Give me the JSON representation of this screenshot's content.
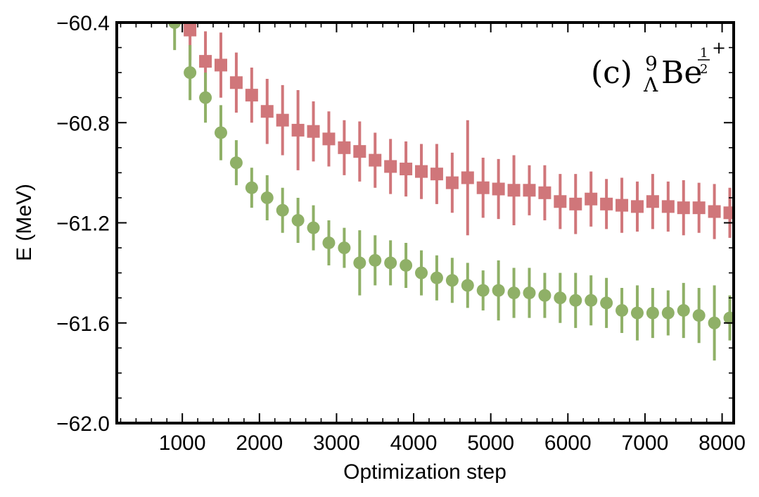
{
  "chart_data": {
    "type": "scatter",
    "title": "",
    "annotation": {
      "panel": "(c)",
      "mass_number": "9",
      "subscript": "Λ",
      "element": "Be",
      "spin_numerator": "1",
      "spin_denominator": "2",
      "parity": "+"
    },
    "xlabel": "Optimization step",
    "ylabel": "E (MeV)",
    "xlim": [
      150,
      8150
    ],
    "ylim": [
      -62.0,
      -60.4
    ],
    "xticks": [
      1000,
      2000,
      3000,
      4000,
      5000,
      6000,
      7000,
      8000
    ],
    "xtick_labels": [
      "1000",
      "2000",
      "3000",
      "4000",
      "5000",
      "6000",
      "7000",
      "8000"
    ],
    "yticks": [
      -62.0,
      -61.6,
      -61.2,
      -60.8,
      -60.4
    ],
    "ytick_labels": [
      "−62.0",
      "−61.6",
      "−61.2",
      "−60.8",
      "−60.4"
    ],
    "grid": false,
    "series": [
      {
        "name": "red-squares",
        "marker": "square",
        "color": "#d0767a",
        "x": [
          1100,
          1300,
          1500,
          1700,
          1900,
          2100,
          2300,
          2500,
          2700,
          2900,
          3100,
          3300,
          3500,
          3700,
          3900,
          4100,
          4300,
          4500,
          4700,
          4900,
          5100,
          5300,
          5500,
          5700,
          5900,
          6100,
          6300,
          6500,
          6700,
          6900,
          7100,
          7300,
          7500,
          7700,
          7900,
          8100
        ],
        "y": [
          -60.43,
          -60.555,
          -60.57,
          -60.64,
          -60.69,
          -60.755,
          -60.79,
          -60.83,
          -60.835,
          -60.865,
          -60.9,
          -60.915,
          -60.95,
          -60.975,
          -60.985,
          -60.995,
          -61.005,
          -61.04,
          -61.02,
          -61.06,
          -61.065,
          -61.07,
          -61.07,
          -61.08,
          -61.115,
          -61.125,
          -61.105,
          -61.125,
          -61.13,
          -61.135,
          -61.115,
          -61.135,
          -61.14,
          -61.14,
          -61.155,
          -61.16
        ],
        "yerr": [
          0.12,
          0.12,
          0.13,
          0.12,
          0.11,
          0.13,
          0.14,
          0.16,
          0.12,
          0.11,
          0.11,
          0.12,
          0.11,
          0.11,
          0.11,
          0.11,
          0.12,
          0.12,
          0.23,
          0.12,
          0.12,
          0.14,
          0.1,
          0.11,
          0.11,
          0.12,
          0.11,
          0.1,
          0.11,
          0.1,
          0.11,
          0.1,
          0.11,
          0.1,
          0.11,
          0.1
        ]
      },
      {
        "name": "green-circles",
        "marker": "circle",
        "color": "#8fb067",
        "x": [
          900,
          1100,
          1300,
          1500,
          1700,
          1900,
          2100,
          2300,
          2500,
          2700,
          2900,
          3100,
          3300,
          3500,
          3700,
          3900,
          4100,
          4300,
          4500,
          4700,
          4900,
          5100,
          5300,
          5500,
          5700,
          5900,
          6100,
          6300,
          6500,
          6700,
          6900,
          7100,
          7300,
          7500,
          7700,
          7900,
          8100
        ],
        "y": [
          -60.4,
          -60.6,
          -60.7,
          -60.84,
          -60.96,
          -61.06,
          -61.1,
          -61.15,
          -61.19,
          -61.22,
          -61.28,
          -61.3,
          -61.36,
          -61.35,
          -61.36,
          -61.37,
          -61.4,
          -61.42,
          -61.43,
          -61.45,
          -61.47,
          -61.47,
          -61.48,
          -61.48,
          -61.49,
          -61.5,
          -61.51,
          -61.51,
          -61.52,
          -61.55,
          -61.56,
          -61.56,
          -61.56,
          -61.55,
          -61.57,
          -61.6,
          -61.58
        ]
      }
    ],
    "green_yerr": [
      0.11,
      0.11,
      0.1,
      0.11,
      0.09,
      0.08,
      0.09,
      0.09,
      0.09,
      0.09,
      0.09,
      0.08,
      0.13,
      0.1,
      0.09,
      0.09,
      0.09,
      0.09,
      0.09,
      0.09,
      0.08,
      0.12,
      0.1,
      0.1,
      0.09,
      0.1,
      0.11,
      0.1,
      0.1,
      0.09,
      0.11,
      0.1,
      0.09,
      0.11,
      0.11,
      0.15,
      0.09
    ]
  }
}
